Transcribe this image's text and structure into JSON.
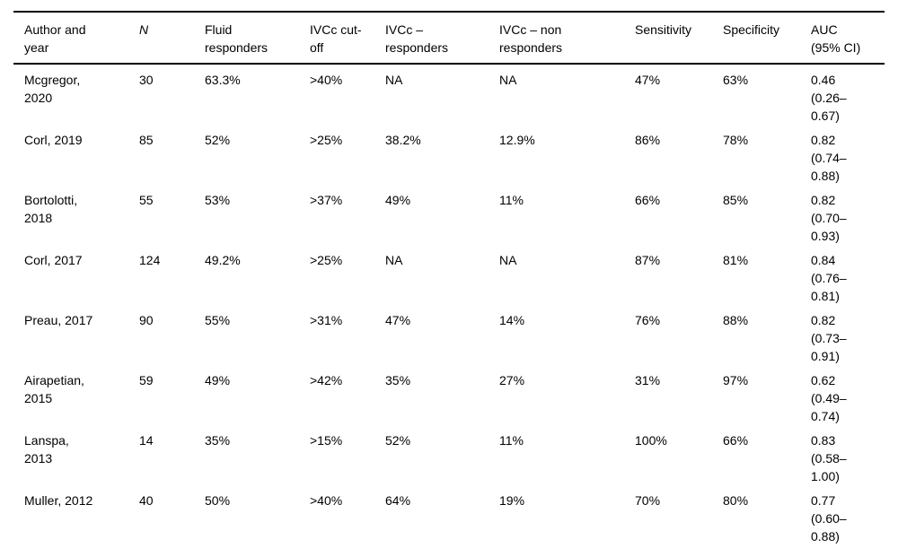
{
  "colors": {
    "background": "#ffffff",
    "text": "#000000",
    "rule": "#000000"
  },
  "table": {
    "columns": [
      "Author and\nyear",
      "N",
      "Fluid\nresponders",
      "IVCc cut-\noff",
      "IVCc –\nresponders",
      "IVCc – non\nresponders",
      "Sensitivity",
      "Specificity",
      "AUC\n(95% CI)"
    ],
    "rows": [
      [
        "Mcgregor,\n2020",
        "30",
        "63.3%",
        ">40%",
        "NA",
        "NA",
        "47%",
        "63%",
        "0.46\n(0.26–\n0.67)"
      ],
      [
        "Corl, 2019",
        "85",
        "52%",
        ">25%",
        "38.2%",
        "12.9%",
        "86%",
        "78%",
        "0.82\n(0.74–\n0.88)"
      ],
      [
        "Bortolotti,\n2018",
        "55",
        "53%",
        ">37%",
        "49%",
        "11%",
        "66%",
        "85%",
        "0.82\n(0.70–\n0.93)"
      ],
      [
        "Corl, 2017",
        "124",
        "49.2%",
        ">25%",
        "NA",
        "NA",
        "87%",
        "81%",
        "0.84\n(0.76–\n0.81)"
      ],
      [
        "Preau, 2017",
        "90",
        "55%",
        ">31%",
        "47%",
        "14%",
        "76%",
        "88%",
        "0.82\n(0.73–\n0.91)"
      ],
      [
        "Airapetian,\n2015",
        "59",
        "49%",
        ">42%",
        "35%",
        "27%",
        "31%",
        "97%",
        "0.62\n(0.49–\n0.74)"
      ],
      [
        "Lanspa,\n2013",
        "14",
        "35%",
        ">15%",
        "52%",
        "11%",
        "100%",
        "66%",
        "0.83\n(0.58–\n1.00)"
      ],
      [
        "Muller, 2012",
        "40",
        "50%",
        ">40%",
        "64%",
        "19%",
        "70%",
        "80%",
        "0.77\n(0.60–\n0.88)"
      ]
    ]
  }
}
